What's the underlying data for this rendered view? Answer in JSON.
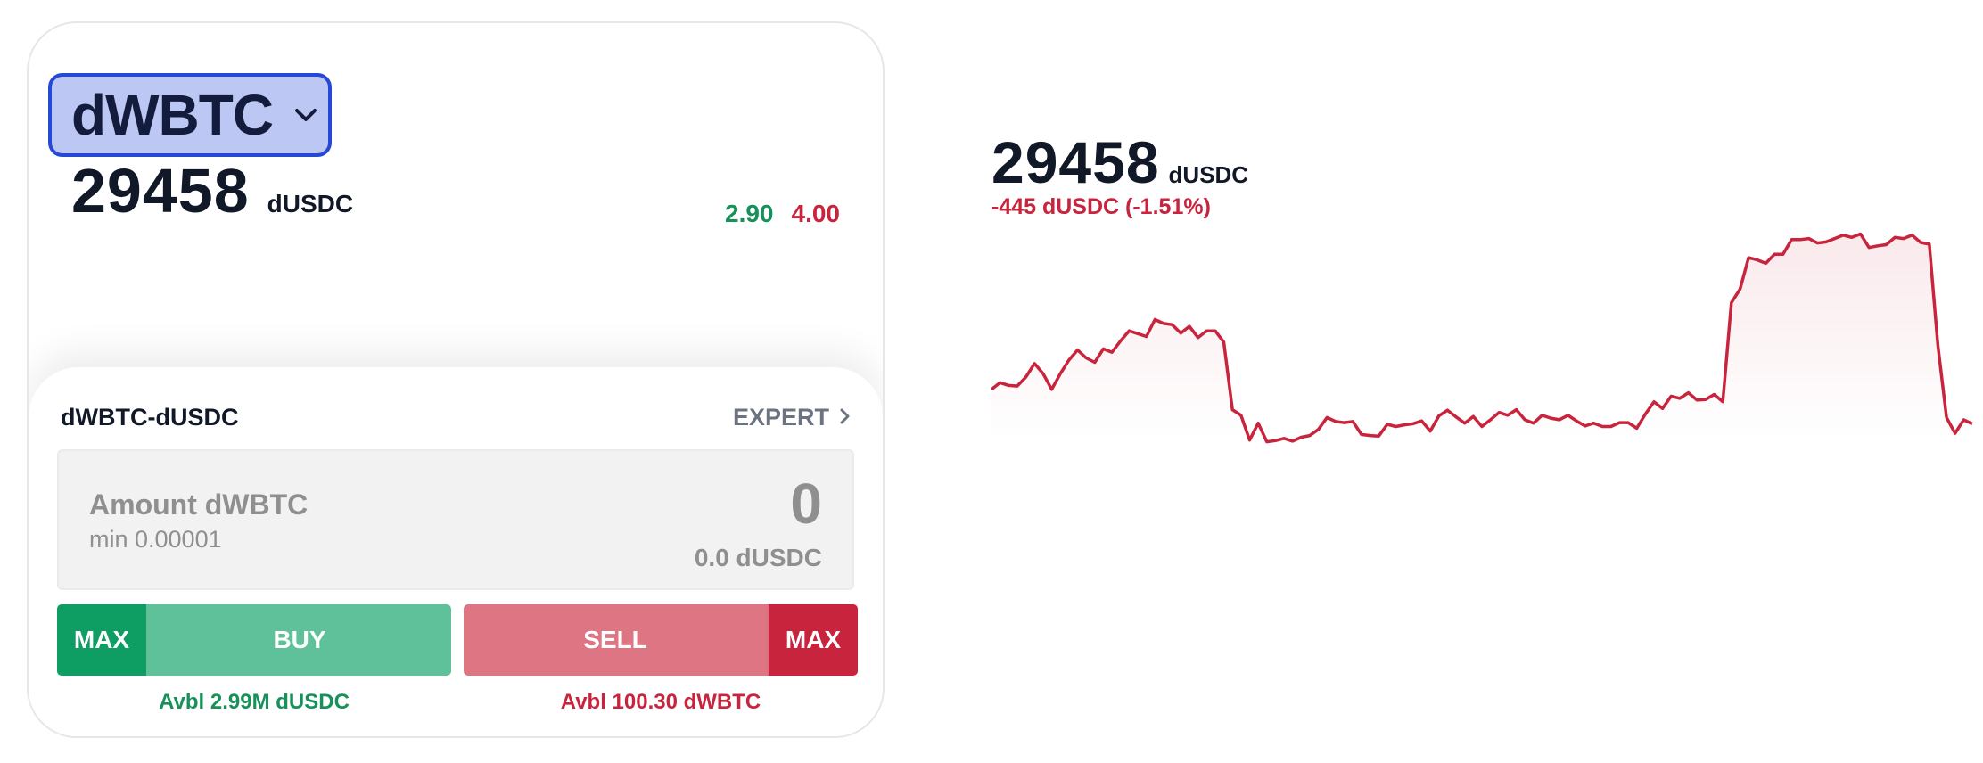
{
  "trade_card": {
    "token_selector": {
      "label": "dWBTC"
    },
    "price": "29458",
    "price_unit": "dUSDC",
    "bid": "2.90",
    "ask": "4.00",
    "order": {
      "pair": "dWBTC-dUSDC",
      "expert_label": "EXPERT",
      "amount_label": "Amount dWBTC",
      "amount_min": "min 0.00001",
      "amount_value": "0",
      "amount_converted": "0.0 dUSDC",
      "buy_max_label": "MAX",
      "buy_label": "BUY",
      "sell_label": "SELL",
      "sell_max_label": "MAX",
      "buy_available": "Avbl 2.99M dUSDC",
      "sell_available": "Avbl 100.30 dWBTC"
    }
  },
  "price_chart": {
    "price": "29458",
    "unit": "dUSDC",
    "change": "-445 dUSDC (-1.51%)"
  },
  "colors": {
    "accent_blue": "#2548d6",
    "selector_bg": "#bcc8f3",
    "buy_green": "#0e9d62",
    "buy_green_light": "#5fc19a",
    "sell_red": "#c8243d",
    "sell_red_light": "#dd7583",
    "line_red": "#c8243d"
  },
  "chart_data": {
    "type": "area",
    "series": [
      {
        "values": [
          29700,
          29760,
          29735,
          29730,
          29810,
          29930,
          29840,
          29700,
          29840,
          29960,
          30050,
          29980,
          29940,
          30060,
          30030,
          30130,
          30220,
          30195,
          30170,
          30320,
          30285,
          30275,
          30200,
          30260,
          30160,
          30220,
          30220,
          30120,
          29520,
          29470,
          29250,
          29400,
          29235,
          29245,
          29265,
          29240,
          29275,
          29290,
          29345,
          29450,
          29415,
          29405,
          29415,
          29300,
          29290,
          29285,
          29390,
          29370,
          29385,
          29395,
          29420,
          29330,
          29465,
          29515,
          29455,
          29400,
          29460,
          29370,
          29430,
          29495,
          29470,
          29520,
          29430,
          29400,
          29470,
          29445,
          29430,
          29470,
          29420,
          29375,
          29400,
          29370,
          29370,
          29405,
          29405,
          29355,
          29480,
          29590,
          29530,
          29640,
          29620,
          29670,
          29605,
          29610,
          29655,
          29590,
          30470,
          30590,
          30870,
          30850,
          30820,
          30900,
          30900,
          31030,
          31030,
          31040,
          31000,
          31010,
          31040,
          31070,
          31050,
          31080,
          30960,
          30975,
          30985,
          31050,
          31040,
          31070,
          31005,
          30990,
          30090,
          29450,
          29310,
          29430,
          29395
        ]
      }
    ]
  }
}
